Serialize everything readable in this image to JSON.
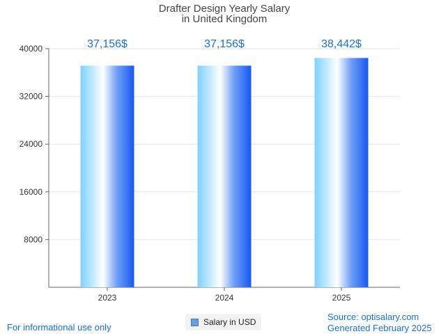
{
  "chart_data": {
    "type": "bar",
    "title_lines": [
      "Drafter Design Yearly Salary",
      "in United Kingdom"
    ],
    "categories": [
      "2023",
      "2024",
      "2025"
    ],
    "series": [
      {
        "name": "Salary in USD",
        "values": [
          37156,
          37156,
          38442
        ]
      }
    ],
    "data_labels": [
      "37,156$",
      "37,156$",
      "38,442$"
    ],
    "y_ticks": [
      8000,
      16000,
      24000,
      32000,
      40000
    ],
    "ylim": [
      0,
      40000
    ],
    "grid": true,
    "legend_position": "bottom-center"
  },
  "footer": {
    "left": "For informational use only",
    "source": "Source: optisalary.com",
    "generated": "Generated February 2025"
  },
  "colors": {
    "bar_light": "#8ad4ff",
    "bar_dark": "#1a5cf0",
    "label": "#1a6fe0",
    "grid": "#e4e4e4"
  }
}
